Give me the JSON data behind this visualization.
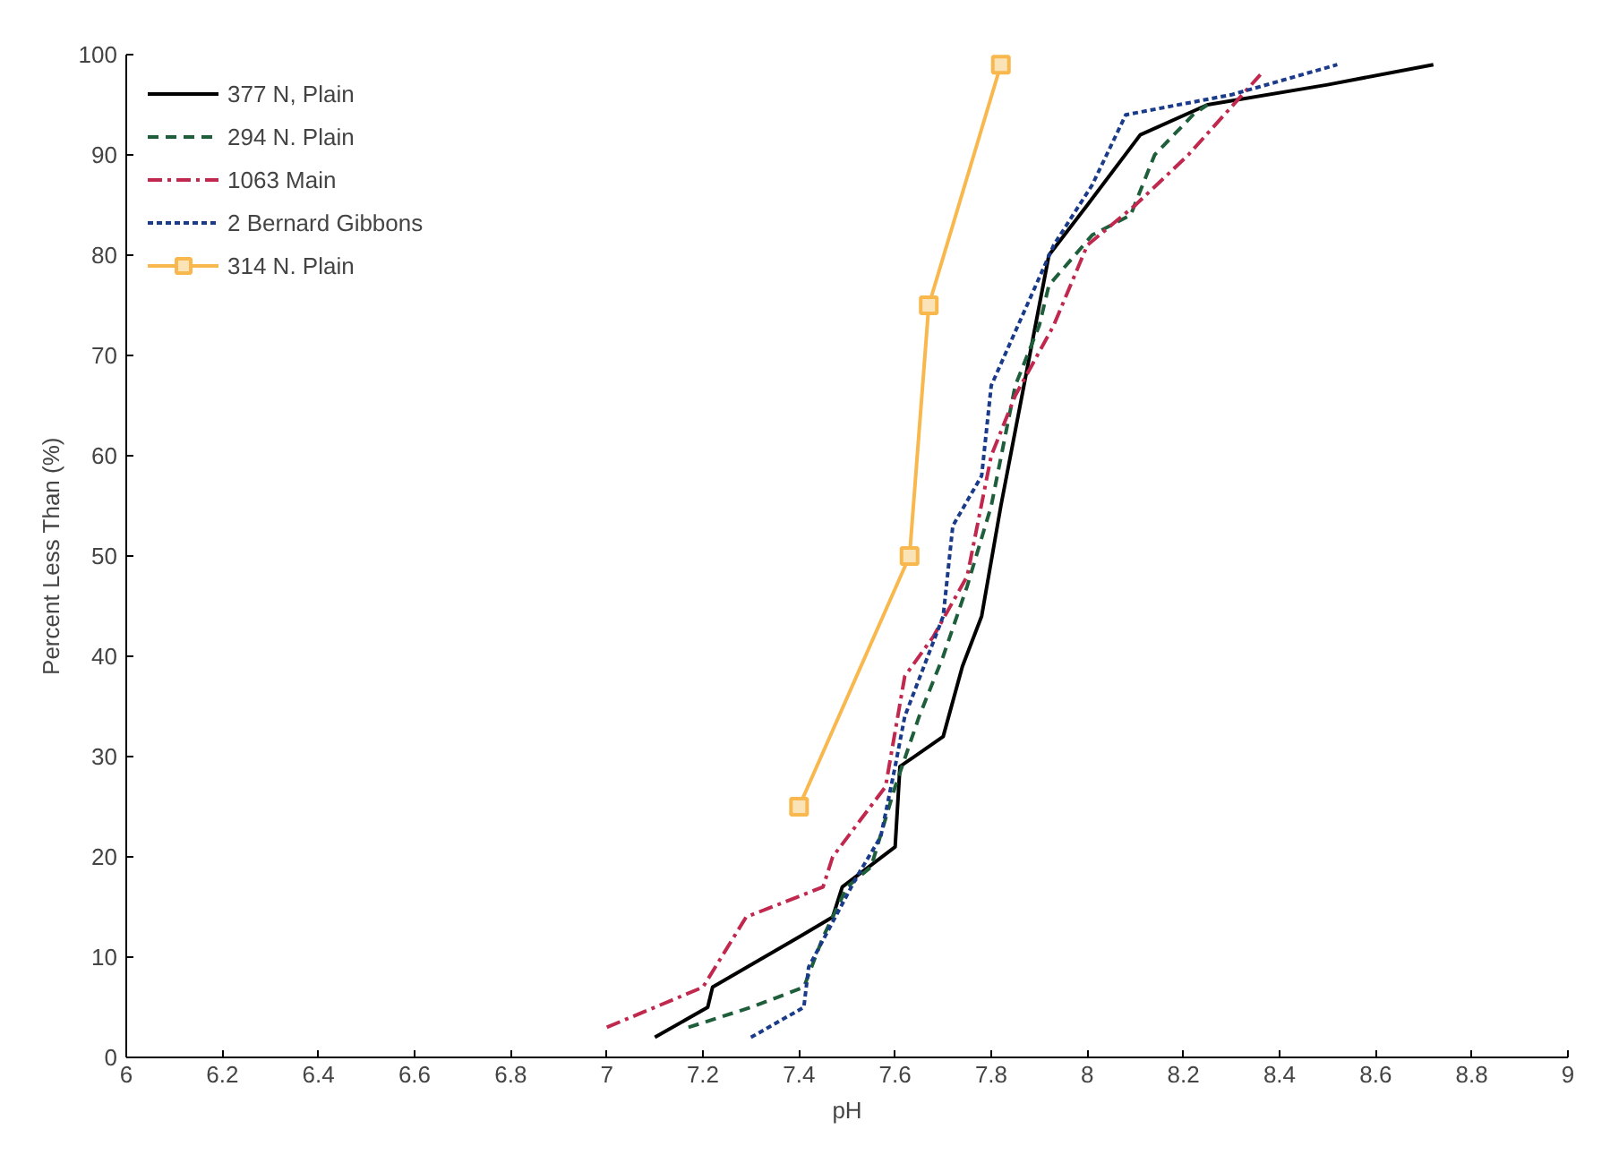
{
  "chart_data": {
    "type": "line",
    "xlabel": "pH",
    "ylabel": "Percent Less Than (%)",
    "xlim": [
      6,
      9
    ],
    "ylim": [
      0,
      100
    ],
    "xticks": [
      6,
      6.2,
      6.4,
      6.6,
      6.8,
      7,
      7.2,
      7.4,
      7.6,
      7.8,
      8,
      8.2,
      8.4,
      8.6,
      8.8,
      9
    ],
    "yticks": [
      0,
      10,
      20,
      30,
      40,
      50,
      60,
      70,
      80,
      90,
      100
    ],
    "grid": false,
    "legend": "top left",
    "series": [
      {
        "name": "377 N, Plain",
        "color": "#000000",
        "line_style": "solid",
        "marker": "none",
        "x": [
          7.1,
          7.21,
          7.22,
          7.4,
          7.47,
          7.49,
          7.6,
          7.61,
          7.7,
          7.74,
          7.78,
          7.82,
          7.92,
          8.0,
          8.11,
          8.25,
          8.5,
          8.72
        ],
        "values": [
          2,
          5,
          7,
          12,
          14,
          17,
          21,
          29,
          32,
          39,
          44,
          55,
          80,
          85,
          92,
          95,
          97,
          99
        ]
      },
      {
        "name": "294 N. Plain",
        "color": "#1e5e3a",
        "line_style": "dashed",
        "marker": "none",
        "x": [
          7.17,
          7.3,
          7.41,
          7.45,
          7.5,
          7.55,
          7.6,
          7.65,
          7.7,
          7.75,
          7.8,
          7.85,
          7.9,
          7.92,
          8.01,
          8.09,
          8.14,
          8.22,
          8.25
        ],
        "values": [
          3,
          5,
          7,
          12,
          17,
          19,
          27,
          34,
          40,
          47,
          55,
          67,
          73,
          77,
          82,
          84,
          90,
          94,
          95
        ]
      },
      {
        "name": "1063 Main",
        "color": "#c0284e",
        "line_style": "dashdot",
        "marker": "none",
        "x": [
          7.0,
          7.2,
          7.29,
          7.45,
          7.47,
          7.58,
          7.62,
          7.68,
          7.75,
          7.8,
          7.85,
          7.93,
          8.0,
          8.1,
          8.21,
          8.36
        ],
        "values": [
          3,
          7,
          14,
          17,
          20,
          27,
          38,
          42,
          48,
          60,
          66,
          73,
          81,
          85,
          90,
          98
        ]
      },
      {
        "name": "2 Bernard Gibbons",
        "color": "#1a3a8a",
        "line_style": "dotted",
        "marker": "none",
        "x": [
          7.3,
          7.41,
          7.42,
          7.52,
          7.57,
          7.6,
          7.62,
          7.7,
          7.72,
          7.78,
          7.8,
          7.93,
          8.01,
          8.08,
          8.3,
          8.52
        ],
        "values": [
          2,
          5,
          9,
          18,
          22,
          29,
          34,
          44,
          53,
          58,
          67,
          81,
          87,
          94,
          96,
          99
        ]
      },
      {
        "name": "314 N. Plain",
        "color": "#f8b84e",
        "line_style": "solid",
        "marker": "square",
        "x": [
          7.4,
          7.63,
          7.67,
          7.82
        ],
        "values": [
          25,
          50,
          75,
          99
        ]
      }
    ]
  }
}
